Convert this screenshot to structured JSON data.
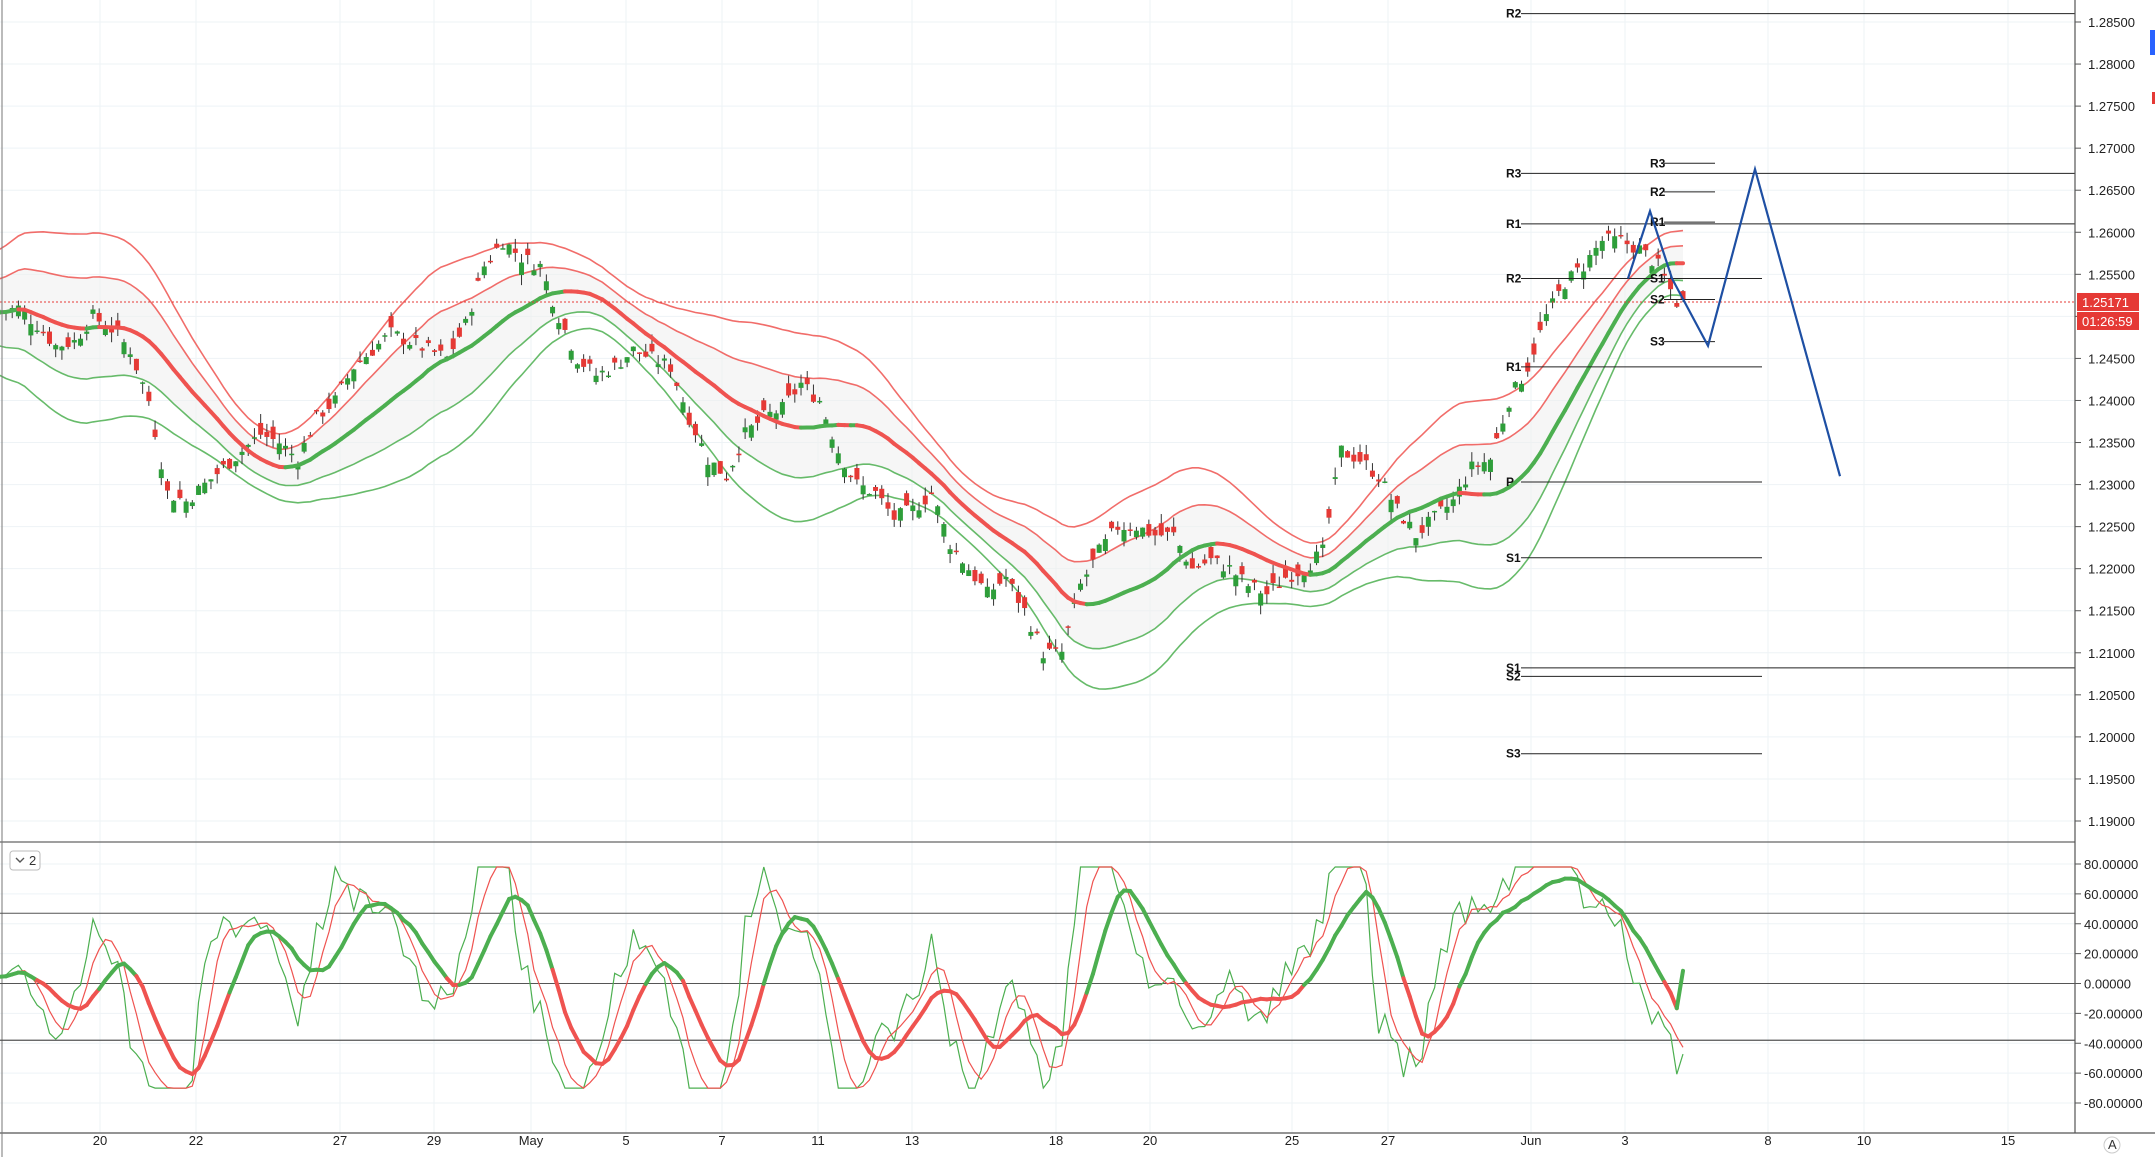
{
  "chart_data": [
    {
      "type": "candlestick",
      "title": "",
      "price_axis": {
        "range": [
          1.185,
          1.29
        ],
        "ticks": [
          "1.28500",
          "1.28000",
          "1.27500",
          "1.27000",
          "1.26500",
          "1.26000",
          "1.25500",
          "1.25000",
          "1.24500",
          "1.24000",
          "1.23500",
          "1.23000",
          "1.22500",
          "1.22000",
          "1.21500",
          "1.21000",
          "1.20500",
          "1.20000",
          "1.19500",
          "1.19000"
        ]
      },
      "time_axis": {
        "ticks": [
          "20",
          "22",
          "27",
          "29",
          "May",
          "5",
          "7",
          "11",
          "13",
          "18",
          "20",
          "25",
          "27",
          "Jun",
          "3",
          "8",
          "10",
          "15"
        ]
      },
      "current_price": "1.25171",
      "countdown": "01:26:59",
      "close_trend": [
        1.2505,
        1.251,
        1.249,
        1.2465,
        1.247,
        1.25,
        1.2485,
        1.246,
        1.24,
        1.229,
        1.228,
        1.23,
        1.232,
        1.234,
        1.236,
        1.235,
        1.233,
        1.238,
        1.24,
        1.244,
        1.246,
        1.248,
        1.247,
        1.246,
        1.245,
        1.249,
        1.256,
        1.259,
        1.257,
        1.256,
        1.25,
        1.245,
        1.243,
        1.244,
        1.246,
        1.245,
        1.244,
        1.238,
        1.233,
        1.231,
        1.236,
        1.238,
        1.239,
        1.242,
        1.24,
        1.234,
        1.23,
        1.229,
        1.226,
        1.227,
        1.229,
        1.223,
        1.22,
        1.217,
        1.219,
        1.215,
        1.21,
        1.21,
        1.218,
        1.222,
        1.225,
        1.225,
        1.224,
        1.224,
        1.22,
        1.221,
        1.22,
        1.218,
        1.217,
        1.219,
        1.22,
        1.222,
        1.234,
        1.233,
        1.231,
        1.227,
        1.224,
        1.226,
        1.228,
        1.232,
        1.233,
        1.24,
        1.244,
        1.25,
        1.254,
        1.256,
        1.259,
        1.259,
        1.258,
        1.256,
        1.2517
      ],
      "pivot_levels": [
        {
          "label": "R2",
          "value": 1.286,
          "scope": "wide"
        },
        {
          "label": "R3",
          "value": 1.267,
          "scope": "wide"
        },
        {
          "label": "R1",
          "value": 1.261,
          "scope": "wide"
        },
        {
          "label": "R2",
          "value": 1.2545,
          "scope": "mid"
        },
        {
          "label": "R1",
          "value": 1.244,
          "scope": "mid"
        },
        {
          "label": "P",
          "value": 1.2303,
          "scope": "mid"
        },
        {
          "label": "S1",
          "value": 1.2213,
          "scope": "mid"
        },
        {
          "label": "S1",
          "value": 1.2082,
          "scope": "wide"
        },
        {
          "label": "S2",
          "value": 1.2072,
          "scope": "mid"
        },
        {
          "label": "S3",
          "value": 1.198,
          "scope": "mid"
        },
        {
          "label": "R3",
          "value": 1.2682,
          "scope": "short"
        },
        {
          "label": "R2",
          "value": 1.2648,
          "scope": "short"
        },
        {
          "label": "R1",
          "value": 1.2612,
          "scope": "short"
        },
        {
          "label": "S1",
          "value": 1.2545,
          "scope": "short"
        },
        {
          "label": "S2",
          "value": 1.252,
          "scope": "short"
        },
        {
          "label": "S3",
          "value": 1.247,
          "scope": "short"
        }
      ],
      "projection": [
        1.2545,
        1.2625,
        1.2545,
        1.2465,
        1.2675,
        1.231
      ]
    },
    {
      "type": "line",
      "indicator_label": "2",
      "value_axis": {
        "range": [
          -75,
          88
        ],
        "ticks": [
          "80.00000",
          "60.00000",
          "40.00000",
          "20.00000",
          "0.00000",
          "-20.00000",
          "-40.00000",
          "-60.00000",
          "-80.00000"
        ]
      },
      "levels": [
        47,
        0,
        -38
      ],
      "main_series_end": 8.5,
      "colors": {
        "up": "#4caf50",
        "down": "#ef5350",
        "projection": "#1e4fa3",
        "current_price": "#e53935"
      }
    }
  ],
  "footer": {
    "auto_label": "A"
  }
}
